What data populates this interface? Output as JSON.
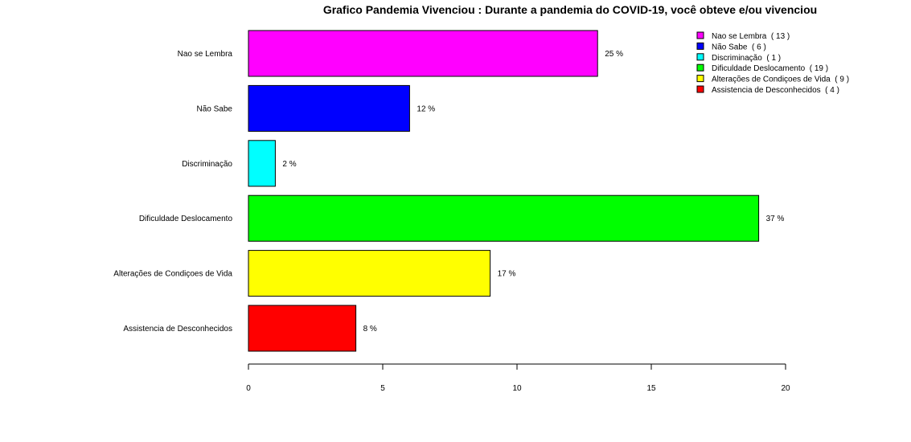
{
  "chart_data": {
    "type": "bar",
    "orientation": "horizontal",
    "title": "Grafico Pandemia Vivenciou : Durante a pandemia do COVID-19, você obteve e/ou vivenciou",
    "xlabel": "",
    "ylabel": "",
    "xlim": [
      0,
      20
    ],
    "xticks": [
      "0",
      "5",
      "10",
      "15",
      "20"
    ],
    "grid": false,
    "legend_position": "top-right",
    "categories": [
      "Nao se Lembra",
      "Não Sabe",
      "Discriminação",
      "Dificuldade Deslocamento",
      "Alterações de Condiçoes de Vida",
      "Assistencia de Desconhecidos"
    ],
    "values": [
      13,
      6,
      1,
      19,
      9,
      4
    ],
    "data_labels": [
      "25 %",
      "12 %",
      "2 %",
      "37 %",
      "17 %",
      "8 %"
    ],
    "colors": [
      "#ff00ff",
      "#0000ff",
      "#00ffff",
      "#00ff00",
      "#ffff00",
      "#ff0000"
    ],
    "legend": [
      "Nao se Lembra  ( 13 )",
      "Não Sabe  ( 6 )",
      "Discriminação  ( 1 )",
      "Dificuldade Deslocamento  ( 19 )",
      "Alterações de Condiçoes de Vida  ( 9 )",
      "Assistencia de Desconhecidos  ( 4 )"
    ]
  }
}
